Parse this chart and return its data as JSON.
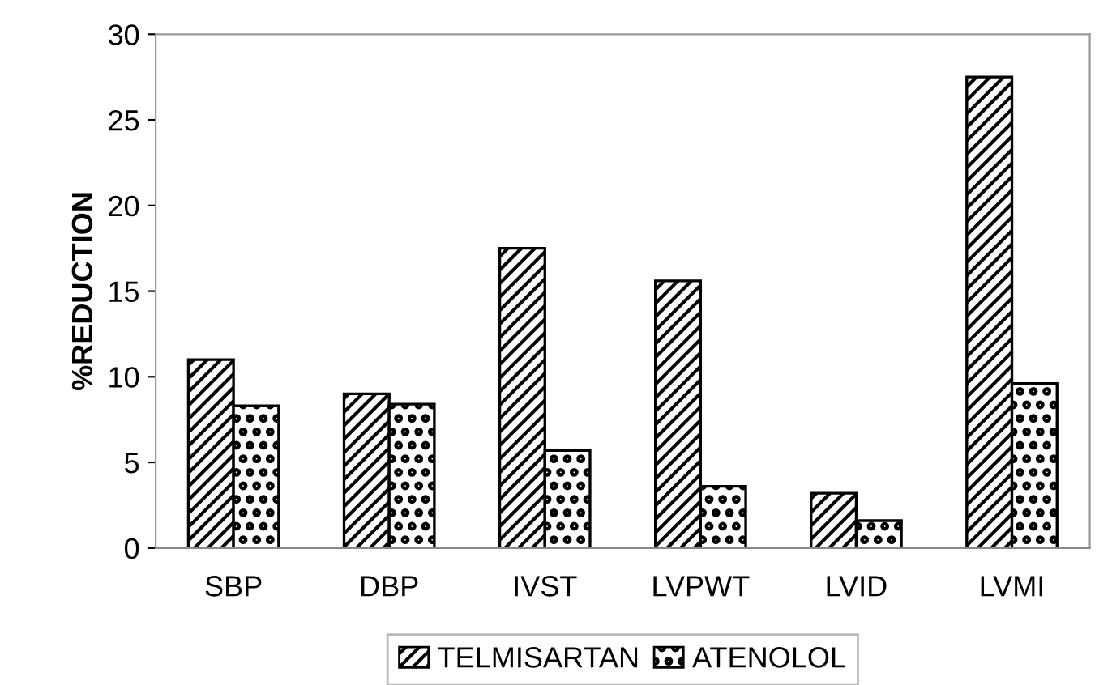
{
  "chart_data": {
    "type": "bar",
    "ylabel": "%REDUCTION",
    "categories": [
      "SBP",
      "DBP",
      "IVST",
      "LVPWT",
      "LVID",
      "LVMI"
    ],
    "series": [
      {
        "name": "TELMISARTAN",
        "color": "#000000",
        "values": [
          11.0,
          9.0,
          17.5,
          15.6,
          3.2,
          27.5
        ]
      },
      {
        "name": "ATENOLOL",
        "color": "#000000",
        "values": [
          8.3,
          8.4,
          5.7,
          3.6,
          1.6,
          9.6
        ]
      }
    ],
    "ylim": [
      0,
      30
    ],
    "yticks": [
      0,
      5,
      10,
      15,
      20,
      25,
      30
    ],
    "grid": false,
    "legend": "bottom"
  }
}
